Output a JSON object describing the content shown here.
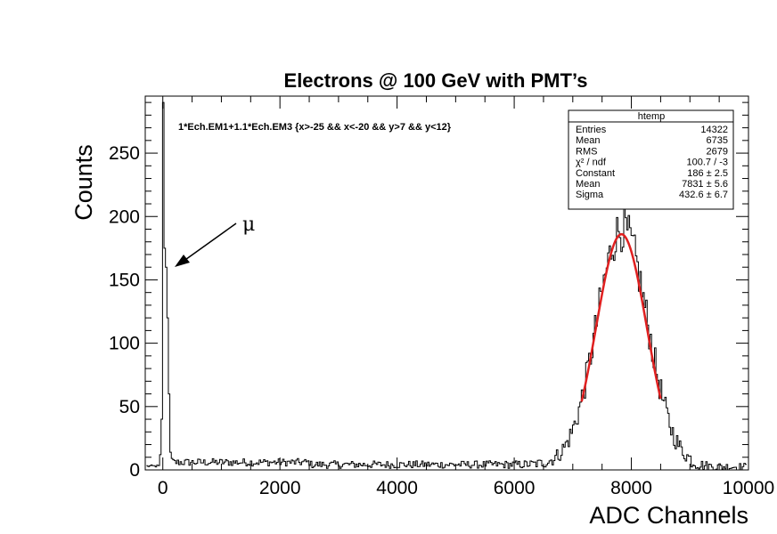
{
  "chart_data": {
    "type": "histogram",
    "title": "Electrons @ 100 GeV with PMT’s",
    "xlabel": "ADC Channels",
    "ylabel": "Counts",
    "xlim": [
      -300,
      10000
    ],
    "ylim": [
      0,
      295
    ],
    "xticks": [
      0,
      2000,
      4000,
      6000,
      8000,
      10000
    ],
    "xtick_labels": [
      "0",
      "2000",
      "4000",
      "6000",
      "8000",
      "10000"
    ],
    "yticks": [
      0,
      50,
      100,
      150,
      200,
      250
    ],
    "ytick_labels": [
      "0",
      "50",
      "100",
      "150",
      "200",
      "250"
    ],
    "cut_text": "1*Ech.EM1+1.1*Ech.EM3 {x>-25 && x<-20 && y>7 && y<12}",
    "annotation": "μ",
    "stats_box": {
      "title": "htemp",
      "rows": [
        {
          "label": "Entries",
          "value": "14322"
        },
        {
          "label": "Mean",
          "value": "6735"
        },
        {
          "label": "RMS",
          "value": "2679"
        },
        {
          "label": "χ² / ndf",
          "value": "100.7 / -3"
        },
        {
          "label": "Constant",
          "value": "186 ± 2.5"
        },
        {
          "label": "Mean",
          "value": "7831 ± 5.6"
        },
        {
          "label": "Sigma",
          "value": "432.6 ± 6.7"
        }
      ]
    },
    "muon_peak": [
      {
        "x": -50,
        "y": 12
      },
      {
        "x": -20,
        "y": 40
      },
      {
        "x": 0,
        "y": 290
      },
      {
        "x": 15,
        "y": 175
      },
      {
        "x": 30,
        "y": 95
      },
      {
        "x": 45,
        "y": 160
      },
      {
        "x": 60,
        "y": 178
      },
      {
        "x": 75,
        "y": 120
      },
      {
        "x": 90,
        "y": 60
      },
      {
        "x": 105,
        "y": 25
      },
      {
        "x": 120,
        "y": 14
      },
      {
        "x": 140,
        "y": 9
      }
    ],
    "background_level": 6,
    "histogram_bin_width": 25,
    "fit": {
      "function": "gaus",
      "constant": 186,
      "mean": 7831,
      "sigma": 432.6,
      "range": [
        7150,
        8500
      ],
      "color": "#e02020"
    },
    "histogram_color": "#000000"
  }
}
